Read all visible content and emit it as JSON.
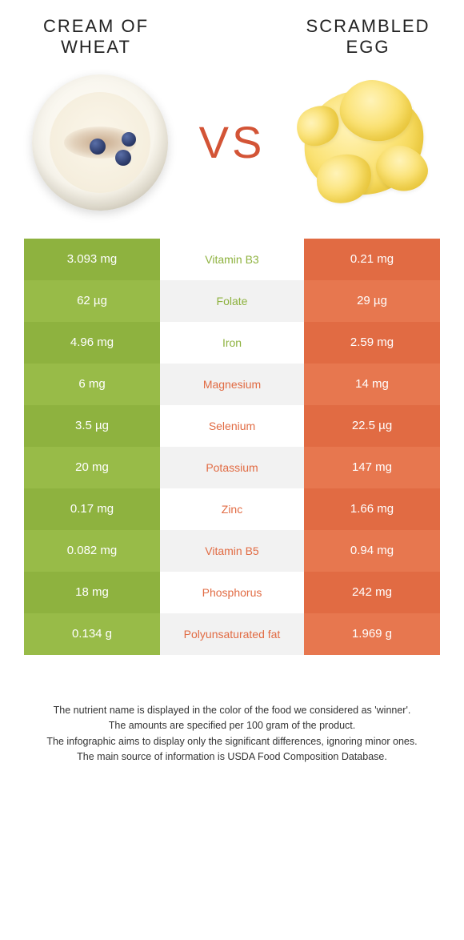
{
  "food1": {
    "name_line1": "CREAM OF",
    "name_line2": "WHEAT"
  },
  "food2": {
    "name_line1": "SCRAMBLED",
    "name_line2": "EGG"
  },
  "vs_label": "VS",
  "colors": {
    "food1_cell": "#8eb23f",
    "food1_cell_alt": "#98bb48",
    "food2_cell": "#e16b43",
    "food2_cell_alt": "#e7774f",
    "mid_text_food1": "#8eb23f",
    "mid_text_food2": "#e16b43",
    "vs_color": "#d35436"
  },
  "rows": [
    {
      "left": "3.093 mg",
      "label": "Vitamin B3",
      "right": "0.21 mg",
      "winner": "food1"
    },
    {
      "left": "62 µg",
      "label": "Folate",
      "right": "29 µg",
      "winner": "food1"
    },
    {
      "left": "4.96 mg",
      "label": "Iron",
      "right": "2.59 mg",
      "winner": "food1"
    },
    {
      "left": "6 mg",
      "label": "Magnesium",
      "right": "14 mg",
      "winner": "food2"
    },
    {
      "left": "3.5 µg",
      "label": "Selenium",
      "right": "22.5 µg",
      "winner": "food2"
    },
    {
      "left": "20 mg",
      "label": "Potassium",
      "right": "147 mg",
      "winner": "food2"
    },
    {
      "left": "0.17 mg",
      "label": "Zinc",
      "right": "1.66 mg",
      "winner": "food2"
    },
    {
      "left": "0.082 mg",
      "label": "Vitamin B5",
      "right": "0.94 mg",
      "winner": "food2"
    },
    {
      "left": "18 mg",
      "label": "Phosphorus",
      "right": "242 mg",
      "winner": "food2"
    },
    {
      "left": "0.134 g",
      "label": "Polyunsaturated fat",
      "right": "1.969 g",
      "winner": "food2"
    }
  ],
  "footnotes": [
    "The nutrient name is displayed in the color of the food we considered as 'winner'.",
    "The amounts are specified per 100 gram of the product.",
    "The infographic aims to display only the significant differences, ignoring minor ones.",
    "The main source of information is USDA Food Composition Database."
  ]
}
